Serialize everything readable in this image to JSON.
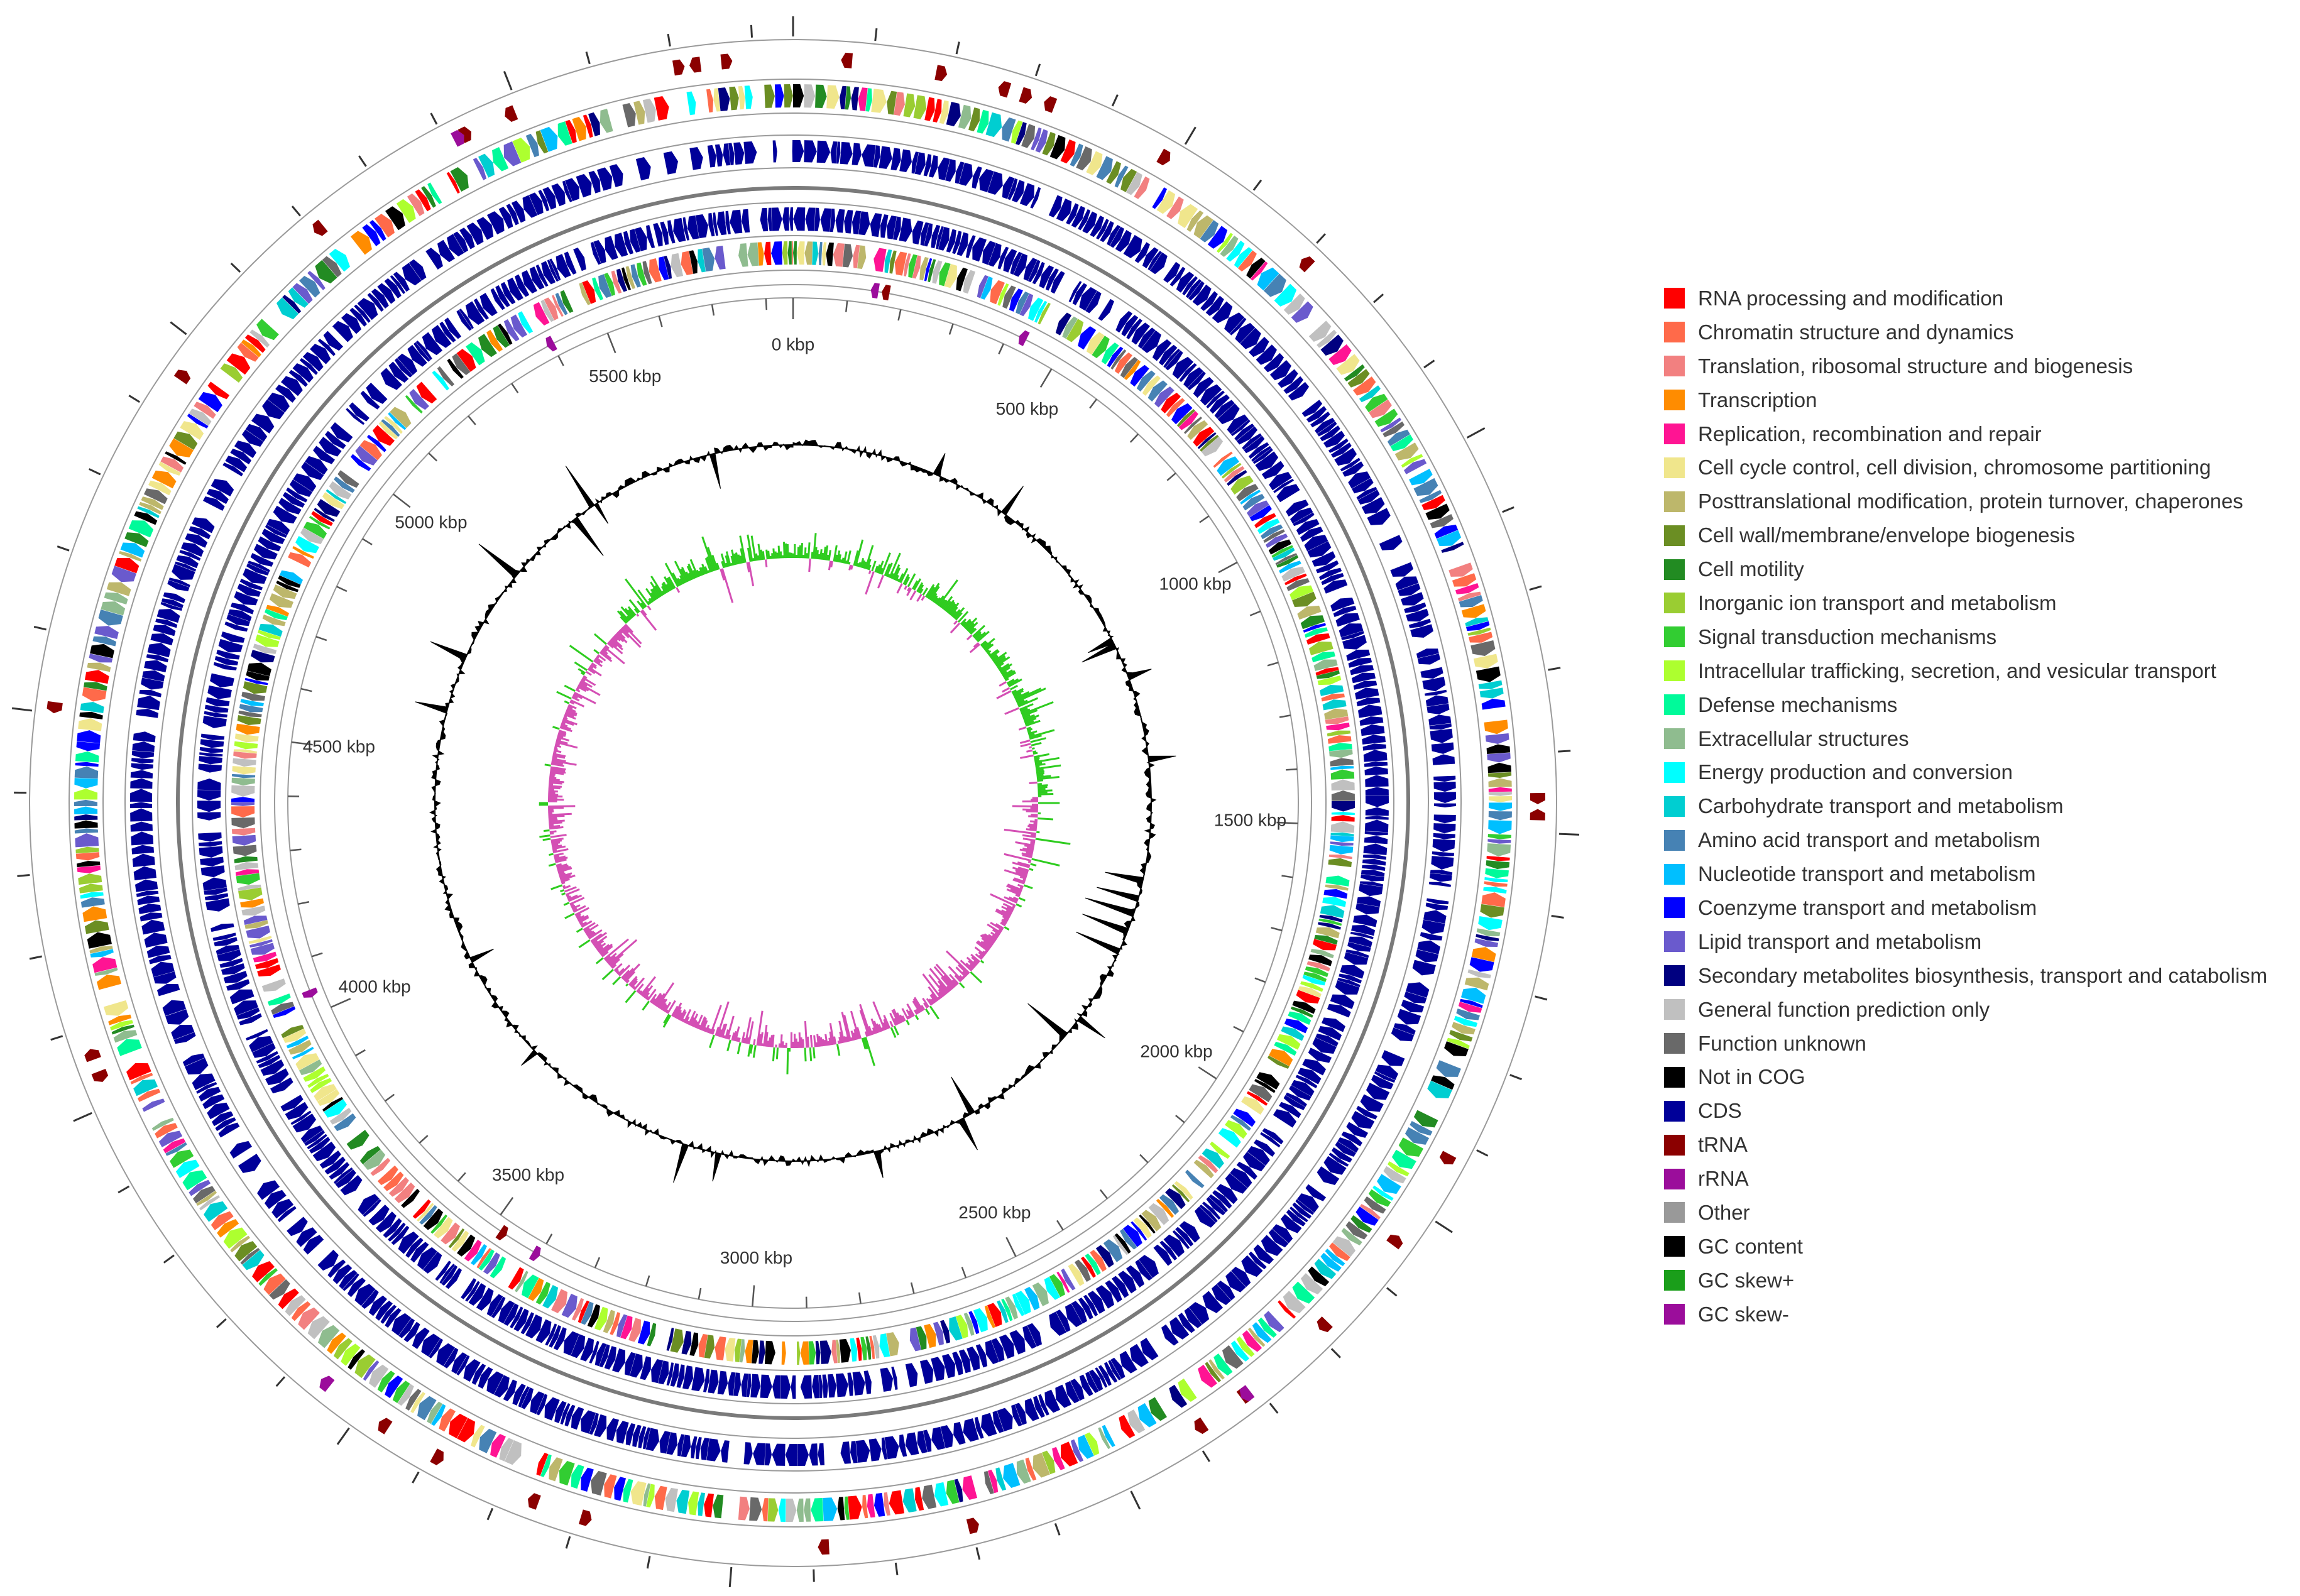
{
  "chart_data": {
    "type": "circular_genome_map",
    "genome_axis": {
      "unit": "kbp",
      "total_kbp": 5850,
      "tick_labels": [
        "0 kbp",
        "500 kbp",
        "1000 kbp",
        "1500 kbp",
        "2000 kbp",
        "2500 kbp",
        "3000 kbp",
        "3500 kbp",
        "4000 kbp",
        "4500 kbp",
        "5000 kbp",
        "5500 kbp"
      ],
      "tick_values": [
        0,
        500,
        1000,
        1500,
        2000,
        2500,
        3000,
        3500,
        4000,
        4500,
        5000,
        5500
      ]
    },
    "tracks_outer_to_inner": [
      "tRNA/rRNA (forward strand)",
      "COG categories (forward strand)",
      "CDS (forward strand)",
      "CDS (reverse strand)",
      "COG categories (reverse strand)",
      "tRNA/rRNA (reverse strand)",
      "GC content",
      "GC skew"
    ],
    "legend": [
      {
        "label": "RNA processing and modification",
        "color": "#ff0000"
      },
      {
        "label": "Chromatin structure and dynamics",
        "color": "#ff6a4a"
      },
      {
        "label": "Translation, ribosomal structure and biogenesis",
        "color": "#f28080"
      },
      {
        "label": "Transcription",
        "color": "#ff8c00"
      },
      {
        "label": "Replication, recombination and repair",
        "color": "#ff1493"
      },
      {
        "label": "Cell cycle control, cell division, chromosome partitioning",
        "color": "#f0e68c"
      },
      {
        "label": "Posttranslational modification, protein turnover, chaperones",
        "color": "#bdb76b"
      },
      {
        "label": "Cell wall/membrane/envelope biogenesis",
        "color": "#6b8e23"
      },
      {
        "label": "Cell motility",
        "color": "#228b22"
      },
      {
        "label": "Inorganic ion transport and metabolism",
        "color": "#9acd32"
      },
      {
        "label": "Signal transduction mechanisms",
        "color": "#32cd32"
      },
      {
        "label": "Intracellular trafficking, secretion, and vesicular transport",
        "color": "#adff2f"
      },
      {
        "label": "Defense mechanisms",
        "color": "#00fa9a"
      },
      {
        "label": "Extracellular structures",
        "color": "#8fbc8f"
      },
      {
        "label": "Energy production and conversion",
        "color": "#00ffff"
      },
      {
        "label": "Carbohydrate transport and metabolism",
        "color": "#00ced1"
      },
      {
        "label": "Amino acid transport and metabolism",
        "color": "#4682b4"
      },
      {
        "label": "Nucleotide transport and metabolism",
        "color": "#00bfff"
      },
      {
        "label": "Coenzyme transport and metabolism",
        "color": "#0000ff"
      },
      {
        "label": "Lipid transport and metabolism",
        "color": "#6a5acd"
      },
      {
        "label": "Secondary metabolites biosynthesis, transport and catabolism",
        "color": "#000080"
      },
      {
        "label": "General function prediction only",
        "color": "#c0c0c0"
      },
      {
        "label": "Function unknown",
        "color": "#696969"
      },
      {
        "label": "Not in COG",
        "color": "#000000"
      },
      {
        "label": "CDS",
        "color": "#000099"
      },
      {
        "label": "tRNA",
        "color": "#8b0000"
      },
      {
        "label": "rRNA",
        "color": "#9b0d9b"
      },
      {
        "label": "Other",
        "color": "#999999"
      },
      {
        "label": "GC content",
        "color": "#000000"
      },
      {
        "label": "GC skew+",
        "color": "#1a9e1a"
      },
      {
        "label": "GC skew-",
        "color": "#9b0d9b"
      }
    ],
    "feature_colors": {
      "cds": "#000099",
      "trna": "#8b0000",
      "rrna": "#9b0d9b",
      "gc_content": "#000000",
      "gc_skew_pos": "#2ecc1f",
      "gc_skew_neg": "#d44fb4",
      "axis": "#666666"
    }
  }
}
